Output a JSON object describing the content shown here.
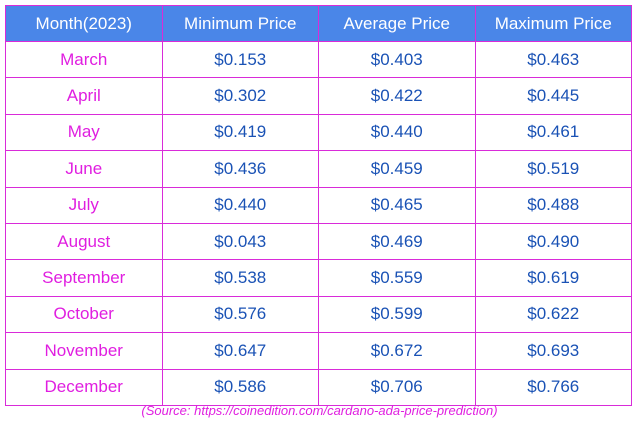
{
  "table": {
    "header": [
      "Month(2023)",
      "Minimum Price",
      "Average Price",
      "Maximum Price"
    ],
    "rows": [
      [
        "March",
        "$0.153",
        "$0.403",
        "$0.463"
      ],
      [
        "April",
        "$0.302",
        "$0.422",
        "$0.445"
      ],
      [
        "May",
        "$0.419",
        "$0.440",
        "$0.461"
      ],
      [
        "June",
        "$0.436",
        "$0.459",
        "$0.519"
      ],
      [
        "July",
        "$0.440",
        "$0.465",
        "$0.488"
      ],
      [
        "August",
        "$0.043",
        "$0.469",
        "$0.490"
      ],
      [
        "September",
        "$0.538",
        "$0.559",
        "$0.619"
      ],
      [
        "October",
        "$0.576",
        "$0.599",
        "$0.622"
      ],
      [
        "November",
        "$0.647",
        "$0.672",
        "$0.693"
      ],
      [
        "December",
        "$0.586",
        "$0.706",
        "$0.766"
      ]
    ],
    "source": "(Source: https://coinedition.com/cardano-ada-price-prediction)"
  }
}
